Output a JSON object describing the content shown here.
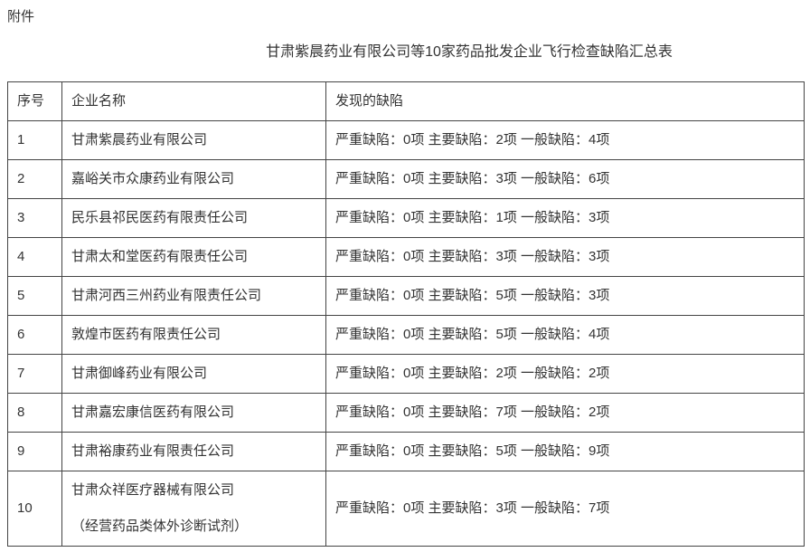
{
  "page": {
    "attachment_label": "附件",
    "title": "甘肃紫晨药业有限公司等10家药品批发企业飞行检查缺陷汇总表"
  },
  "colors": {
    "text": "#333333",
    "table_border": "#444444",
    "background": "#ffffff"
  },
  "table": {
    "headers": [
      "序号",
      "企业名称",
      "发现的缺陷"
    ],
    "rows": [
      {
        "no": "1",
        "company": "甘肃紫晨药业有限公司",
        "note": "",
        "defects": "严重缺陷：0项 主要缺陷：2项 一般缺陷：4项"
      },
      {
        "no": "2",
        "company": "嘉峪关市众康药业有限公司",
        "note": "",
        "defects": "严重缺陷：0项 主要缺陷：3项 一般缺陷：6项"
      },
      {
        "no": "3",
        "company": "民乐县祁民医药有限责任公司",
        "note": "",
        "defects": "严重缺陷：0项 主要缺陷：1项 一般缺陷：3项"
      },
      {
        "no": "4",
        "company": "甘肃太和堂医药有限责任公司",
        "note": "",
        "defects": "严重缺陷：0项 主要缺陷：3项 一般缺陷：3项"
      },
      {
        "no": "5",
        "company": "甘肃河西三州药业有限责任公司",
        "note": "",
        "defects": "严重缺陷：0项 主要缺陷：5项 一般缺陷：3项"
      },
      {
        "no": "6",
        "company": "敦煌市医药有限责任公司",
        "note": "",
        "defects": "严重缺陷：0项 主要缺陷：5项 一般缺陷：4项"
      },
      {
        "no": "7",
        "company": "甘肃御峰药业有限公司",
        "note": "",
        "defects": "严重缺陷：0项 主要缺陷：2项 一般缺陷：2项"
      },
      {
        "no": "8",
        "company": "甘肃嘉宏康信医药有限公司",
        "note": "",
        "defects": "严重缺陷：0项 主要缺陷：7项 一般缺陷：2项"
      },
      {
        "no": "9",
        "company": "甘肃裕康药业有限责任公司",
        "note": "",
        "defects": "严重缺陷：0项 主要缺陷：5项 一般缺陷：9项"
      },
      {
        "no": "10",
        "company": "甘肃众祥医疗器械有限公司",
        "note": "（经营药品类体外诊断试剂）",
        "defects": "严重缺陷：0项 主要缺陷：3项 一般缺陷：7项"
      }
    ]
  }
}
